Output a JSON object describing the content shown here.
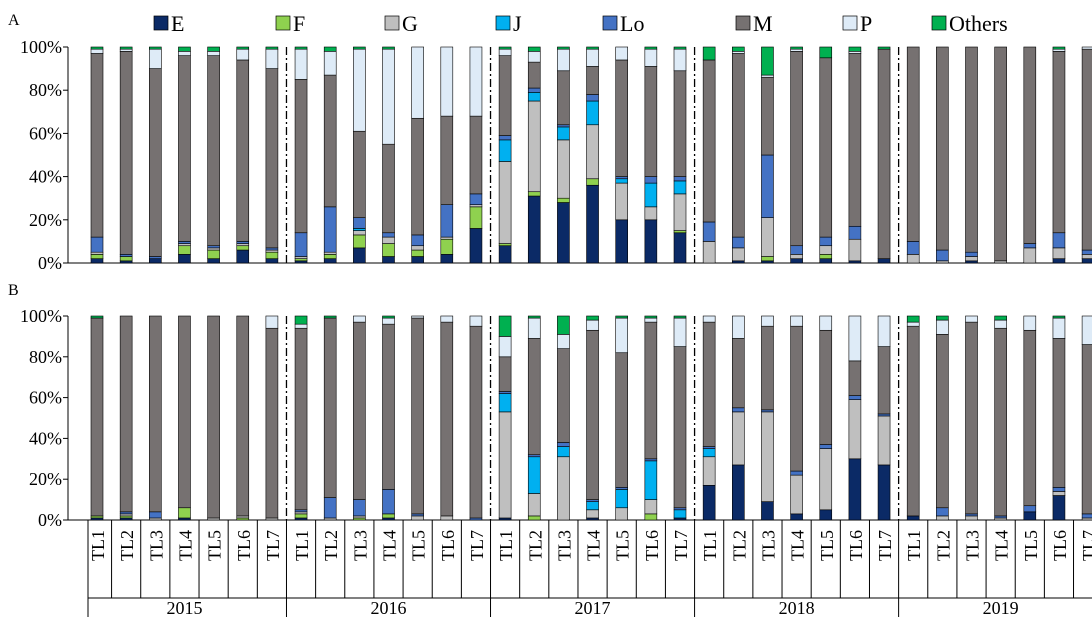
{
  "legend": [
    "E",
    "F",
    "G",
    "J",
    "Lo",
    "M",
    "P",
    "Others"
  ],
  "colors": [
    "#0b2a66",
    "#8fd14f",
    "#bfbfbf",
    "#00b0f0",
    "#4472c4",
    "#767171",
    "#deebf7",
    "#00b050"
  ],
  "chart_data": [
    {
      "type": "bar",
      "stacked": true,
      "panel_label": "A",
      "ylim": [
        0,
        100
      ],
      "yticks": [
        "0%",
        "20%",
        "40%",
        "60%",
        "80%",
        "100%"
      ],
      "years": [
        "2015",
        "2016",
        "2017",
        "2018",
        "2019"
      ],
      "categories": [
        "TL1",
        "TL2",
        "TL3",
        "TL4",
        "TL5",
        "TL6",
        "TL7"
      ],
      "stacks": [
        [
          [
            2,
            2,
            1,
            0,
            7,
            85,
            2,
            1
          ],
          [
            1,
            2,
            0,
            0,
            1,
            94,
            1,
            1
          ],
          [
            2,
            0,
            0,
            0,
            1,
            87,
            9,
            1
          ],
          [
            4,
            4,
            1,
            0,
            1,
            86,
            2,
            2
          ],
          [
            2,
            4,
            1,
            0,
            1,
            88,
            2,
            2
          ],
          [
            6,
            2,
            1,
            0,
            1,
            84,
            5,
            1
          ],
          [
            2,
            3,
            1,
            0,
            1,
            83,
            9,
            1
          ]
        ],
        [
          [
            1,
            1,
            1,
            0,
            11,
            71,
            14,
            1
          ],
          [
            2,
            2,
            1,
            0,
            21,
            61,
            11,
            2
          ],
          [
            7,
            6,
            2,
            1,
            5,
            40,
            38,
            1
          ],
          [
            3,
            6,
            3,
            0,
            2,
            41,
            44,
            1
          ],
          [
            3,
            3,
            2,
            0,
            5,
            54,
            33,
            0
          ],
          [
            4,
            7,
            1,
            0,
            15,
            41,
            32,
            0
          ],
          [
            16,
            10,
            1,
            0,
            5,
            36,
            32,
            0
          ]
        ],
        [
          [
            8,
            1,
            38,
            10,
            2,
            37,
            3,
            1
          ],
          [
            31,
            2,
            42,
            4,
            2,
            12,
            5,
            2
          ],
          [
            28,
            2,
            27,
            6,
            1,
            25,
            10,
            1
          ],
          [
            36,
            3,
            25,
            11,
            3,
            13,
            8,
            1
          ],
          [
            20,
            0,
            17,
            2,
            1,
            54,
            6,
            0
          ],
          [
            20,
            0,
            6,
            11,
            3,
            51,
            8,
            1
          ],
          [
            14,
            1,
            17,
            6,
            2,
            49,
            10,
            1
          ]
        ],
        [
          [
            0,
            0,
            10,
            0,
            9,
            75,
            0,
            6
          ],
          [
            1,
            0,
            6,
            0,
            5,
            85,
            1,
            2
          ],
          [
            1,
            2,
            18,
            0,
            29,
            36,
            1,
            13
          ],
          [
            2,
            0,
            2,
            0,
            4,
            90,
            1,
            1
          ],
          [
            2,
            2,
            4,
            0,
            4,
            83,
            0,
            5
          ],
          [
            1,
            0,
            10,
            0,
            6,
            80,
            1,
            2
          ],
          [
            2,
            0,
            0,
            0,
            0,
            97,
            0,
            1
          ]
        ],
        [
          [
            0,
            0,
            4,
            0,
            6,
            90,
            0,
            0
          ],
          [
            0,
            0,
            1,
            0,
            5,
            94,
            0,
            0
          ],
          [
            1,
            0,
            2,
            0,
            2,
            95,
            0,
            0
          ],
          [
            0,
            0,
            1,
            0,
            0,
            99,
            0,
            0
          ],
          [
            0,
            0,
            7,
            0,
            2,
            91,
            0,
            0
          ],
          [
            2,
            0,
            5,
            0,
            7,
            84,
            1,
            1
          ],
          [
            2,
            0,
            2,
            0,
            2,
            93,
            1,
            0
          ]
        ]
      ]
    },
    {
      "type": "bar",
      "stacked": true,
      "panel_label": "B",
      "ylim": [
        0,
        100
      ],
      "yticks": [
        "0%",
        "20%",
        "40%",
        "60%",
        "80%",
        "100%"
      ],
      "years": [
        "2015",
        "2016",
        "2017",
        "2018",
        "2019"
      ],
      "categories": [
        "TL1",
        "TL2",
        "TL3",
        "TL4",
        "TL5",
        "TL6",
        "TL7"
      ],
      "stacks": [
        [
          [
            1,
            1,
            0,
            0,
            0,
            97,
            0,
            1
          ],
          [
            1,
            1,
            1,
            0,
            1,
            96,
            0,
            0
          ],
          [
            0,
            0,
            1,
            0,
            3,
            96,
            0,
            0
          ],
          [
            1,
            5,
            0,
            0,
            0,
            94,
            0,
            0
          ],
          [
            0,
            0,
            1,
            0,
            0,
            99,
            0,
            0
          ],
          [
            0,
            1,
            1,
            0,
            0,
            98,
            0,
            0
          ],
          [
            0,
            0,
            1,
            0,
            0,
            93,
            6,
            0
          ]
        ],
        [
          [
            1,
            2,
            1,
            0,
            1,
            89,
            2,
            4
          ],
          [
            0,
            0,
            1,
            0,
            10,
            88,
            0,
            1
          ],
          [
            0,
            1,
            1,
            0,
            8,
            87,
            3,
            0
          ],
          [
            1,
            2,
            0,
            0,
            12,
            81,
            3,
            1
          ],
          [
            0,
            0,
            2,
            0,
            1,
            96,
            1,
            0
          ],
          [
            0,
            0,
            2,
            0,
            0,
            95,
            3,
            0
          ],
          [
            0,
            0,
            0,
            0,
            1,
            94,
            5,
            0
          ]
        ],
        [
          [
            1,
            0,
            52,
            9,
            1,
            17,
            10,
            10
          ],
          [
            0,
            2,
            11,
            18,
            1,
            57,
            10,
            1
          ],
          [
            0,
            0,
            31,
            5,
            2,
            46,
            7,
            9
          ],
          [
            1,
            0,
            4,
            4,
            1,
            83,
            5,
            2
          ],
          [
            0,
            0,
            6,
            9,
            1,
            66,
            17,
            1
          ],
          [
            0,
            3,
            7,
            19,
            1,
            67,
            2,
            1
          ],
          [
            1,
            0,
            0,
            4,
            1,
            79,
            14,
            1
          ]
        ],
        [
          [
            17,
            0,
            14,
            4,
            1,
            61,
            3,
            0
          ],
          [
            27,
            0,
            26,
            0,
            2,
            34,
            11,
            0
          ],
          [
            9,
            0,
            44,
            0,
            1,
            41,
            5,
            0
          ],
          [
            3,
            0,
            19,
            0,
            2,
            71,
            5,
            0
          ],
          [
            5,
            0,
            30,
            0,
            2,
            56,
            7,
            0
          ],
          [
            30,
            0,
            29,
            0,
            2,
            17,
            22,
            0
          ],
          [
            27,
            0,
            24,
            0,
            1,
            33,
            15,
            0
          ]
        ],
        [
          [
            2,
            0,
            0,
            0,
            0,
            93,
            2,
            3
          ],
          [
            0,
            0,
            2,
            0,
            4,
            85,
            7,
            2
          ],
          [
            0,
            0,
            2,
            0,
            1,
            94,
            3,
            0
          ],
          [
            0,
            0,
            1,
            0,
            1,
            92,
            4,
            2
          ],
          [
            4,
            0,
            0,
            0,
            3,
            86,
            7,
            0
          ],
          [
            12,
            0,
            2,
            0,
            2,
            73,
            10,
            1
          ],
          [
            0,
            0,
            1,
            0,
            2,
            83,
            14,
            0
          ]
        ]
      ]
    }
  ]
}
